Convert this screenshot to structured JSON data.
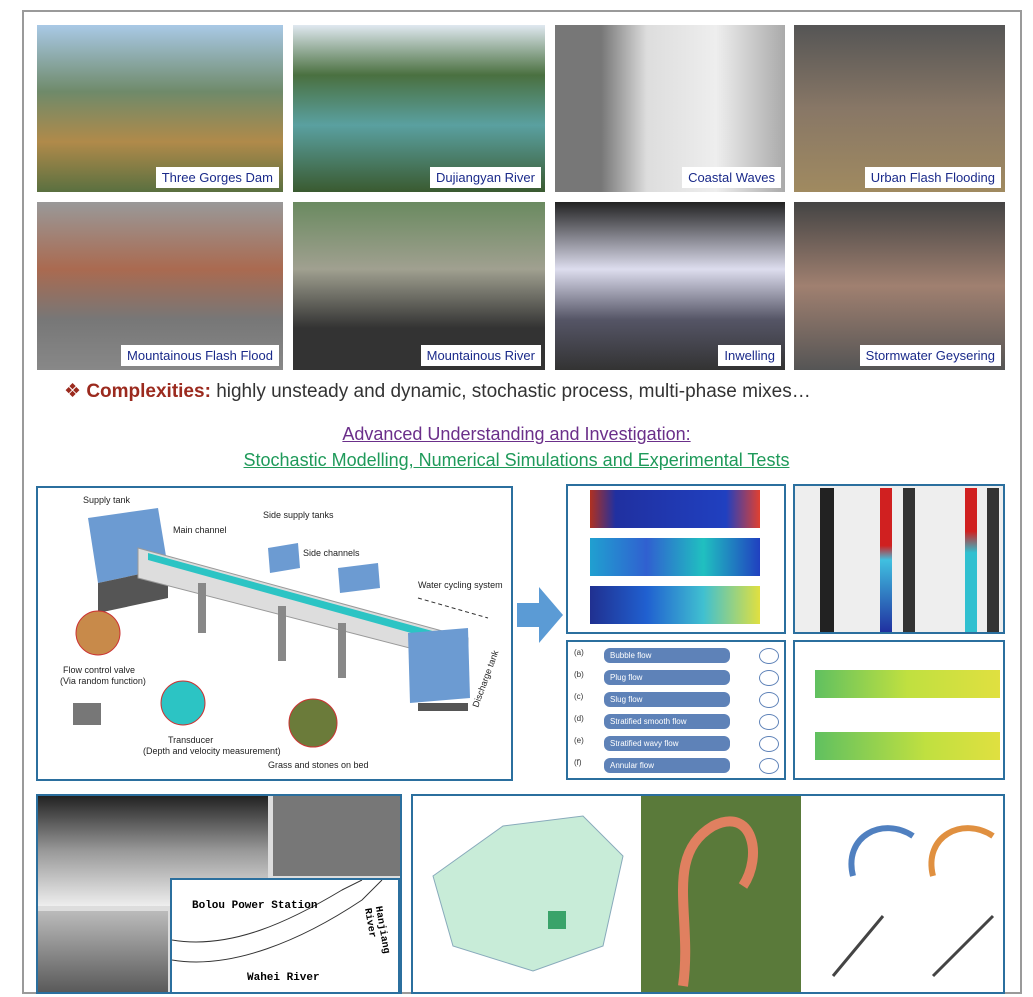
{
  "photos": [
    {
      "caption": "Three Gorges Dam"
    },
    {
      "caption": "Dujiangyan River"
    },
    {
      "caption": "Coastal Waves"
    },
    {
      "caption": "Urban Flash Flooding"
    },
    {
      "caption": "Mountainous Flash Flood"
    },
    {
      "caption": "Mountainous River"
    },
    {
      "caption": "Inwelling"
    },
    {
      "caption": "Stormwater Geysering"
    }
  ],
  "complexities": {
    "label": "Complexities:",
    "text": "highly unsteady and dynamic, stochastic process, multi-phase mixes…"
  },
  "heading": {
    "line1": "Advanced Understanding and Investigation:",
    "line2": "Stochastic Modelling, Numerical Simulations and Experimental Tests"
  },
  "diagram": {
    "supply_tank": "Supply tank",
    "main_channel": "Main channel",
    "side_supply_tanks": "Side supply tanks",
    "side_channels": "Side channels",
    "water_cycling": "Water cycling system",
    "valve": "Flow control valve",
    "valve_note": "(Via random function)",
    "transducer": "Transducer",
    "transducer_note": "(Depth and velocity measurement)",
    "grass": "Grass and stones on bed",
    "discharge": "Discharge tank"
  },
  "flow_regimes": [
    {
      "letter": "(a)",
      "name": "Bubble flow"
    },
    {
      "letter": "(b)",
      "name": "Plug flow"
    },
    {
      "letter": "(c)",
      "name": "Slug flow"
    },
    {
      "letter": "(d)",
      "name": "Stratified smooth flow"
    },
    {
      "letter": "(e)",
      "name": "Stratified wavy flow"
    },
    {
      "letter": "(f)",
      "name": "Annular flow"
    }
  ],
  "map": {
    "station": "Bolou Power Station",
    "river1": "Wahei River",
    "river2": "Hanjiang River"
  }
}
